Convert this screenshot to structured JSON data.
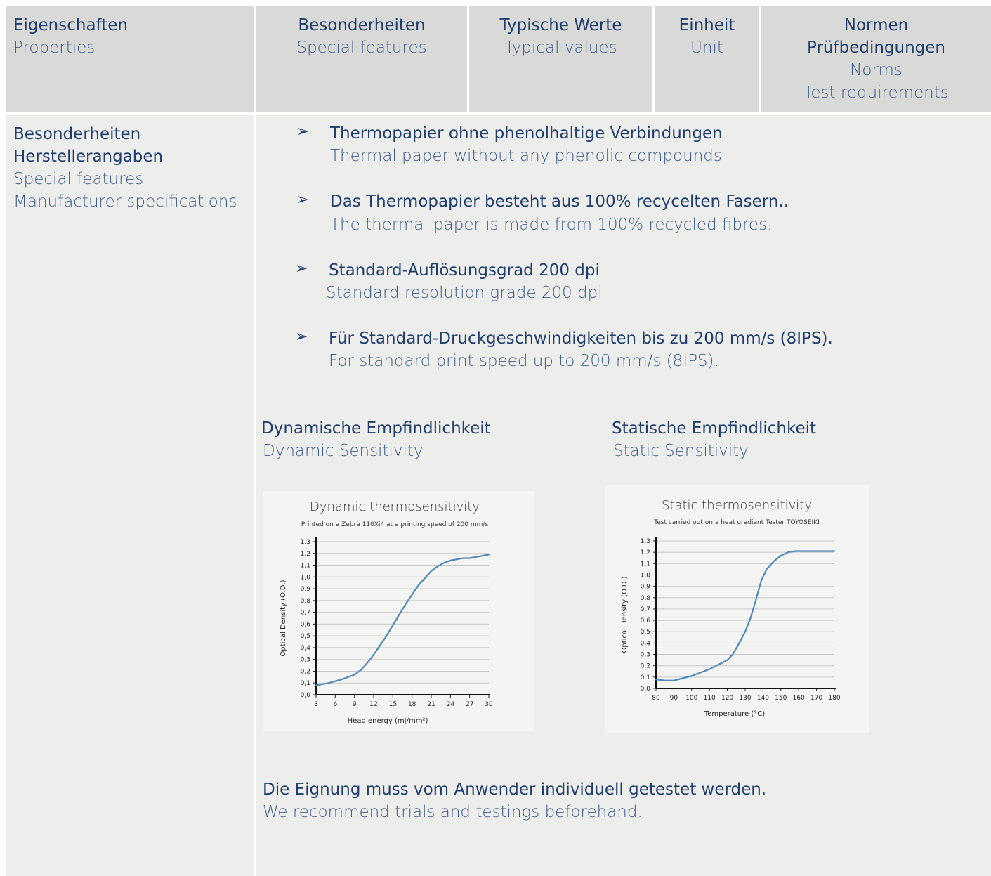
{
  "header": {
    "col1": {
      "de": "Eigenschaften",
      "en": "Properties"
    },
    "col2": {
      "de": "Besonderheiten",
      "en": "Special features"
    },
    "col3": {
      "de": "Typische Werte",
      "en": "Typical values"
    },
    "col4": {
      "de": "Einheit",
      "en": "Unit"
    },
    "col5": {
      "de1": "Normen",
      "de2": "Prüfbedingungen",
      "en1": "Norms",
      "en2": "Test requirements"
    }
  },
  "row": {
    "label": {
      "de1": "Besonderheiten",
      "de2": "Herstellerangaben",
      "en1": "Special features",
      "en2": "Manufacturer specifications"
    },
    "features": [
      {
        "de": "Thermopapier ohne phenolhaltige Verbindungen",
        "en": "Thermal paper without any phenolic compounds"
      },
      {
        "de": "Das Thermopapier besteht aus 100% recycelten Fasern..",
        "en": "The thermal paper is made from 100% recycled fibres."
      },
      {
        "de": "Standard-Auflösungsgrad 200 dpi",
        "en": "Standard resolution grade 200 dpi"
      },
      {
        "de": "Für Standard-Druckgeschwindigkeiten bis zu 200 mm/s (8IPS).",
        "en": "For standard print speed up to 200 mm/s (8IPS)."
      }
    ],
    "bullet_icon": "arrowhead-bullet-icon",
    "dynamic_heading": {
      "de": "Dynamische Empfindlichkeit",
      "en": "Dynamic Sensitivity"
    },
    "static_heading": {
      "de": "Statische Empfindlichkeit",
      "en": "Static Sensitivity"
    },
    "note": {
      "de": "Die Eignung muss vom Anwender individuell getestet werden.",
      "en": "We recommend trials and testings beforehand."
    }
  },
  "colors": {
    "header_bg": "#d9d9d8",
    "body_bg": "#ededeb",
    "text": "#1f3e6e",
    "curve": "#4f88bd"
  },
  "chart_data": [
    {
      "type": "line",
      "title": "Dynamic thermosensitivity",
      "subtitle": "Printed on a Zebra 110Xi4 at a printing speed of 200 mm/s",
      "xlabel": "Head energy (mJ/mm²)",
      "ylabel": "Optical Density (O.D.)",
      "x_ticks": [
        "3",
        "6",
        "9",
        "12",
        "15",
        "18",
        "21",
        "24",
        "27",
        "30"
      ],
      "y_ticks": [
        "0,0",
        "0,1",
        "0,2",
        "0,3",
        "0,4",
        "0,5",
        "0,6",
        "0,7",
        "0,8",
        "0,9",
        "1,0",
        "1,1",
        "1,2",
        "1,3"
      ],
      "xlim": [
        3,
        30
      ],
      "ylim": [
        0,
        1.3
      ],
      "grid": true,
      "series": [
        {
          "x": [
            3,
            5,
            7,
            9,
            10,
            11,
            12,
            13,
            14,
            15,
            16,
            17,
            18,
            19,
            20,
            21,
            22,
            23,
            24,
            25,
            26,
            27,
            28,
            29,
            30
          ],
          "y": [
            0.08,
            0.1,
            0.13,
            0.17,
            0.21,
            0.27,
            0.34,
            0.42,
            0.5,
            0.59,
            0.68,
            0.77,
            0.85,
            0.93,
            0.99,
            1.05,
            1.09,
            1.12,
            1.14,
            1.15,
            1.16,
            1.16,
            1.17,
            1.18,
            1.19
          ]
        }
      ]
    },
    {
      "type": "line",
      "title": "Static thermosensitivity",
      "subtitle": "Test carried out on a heat gradient Tester TOYOSEIKI",
      "xlabel": "Temperature (°C)",
      "ylabel": "Optical Density (O.D.)",
      "x_ticks": [
        "80",
        "90",
        "100",
        "110",
        "120",
        "130",
        "140",
        "150",
        "160",
        "170",
        "180"
      ],
      "y_ticks": [
        "0,0",
        "0,1",
        "0,2",
        "0,3",
        "0,4",
        "0,5",
        "0,6",
        "0,7",
        "0,8",
        "0,9",
        "1,0",
        "1,1",
        "1,2",
        "1,3"
      ],
      "xlim": [
        80,
        180
      ],
      "ylim": [
        0,
        1.3
      ],
      "grid": true,
      "series": [
        {
          "x": [
            80,
            85,
            90,
            95,
            100,
            105,
            110,
            115,
            120,
            123,
            126,
            130,
            133,
            136,
            139,
            142,
            146,
            150,
            154,
            158,
            160,
            165,
            170,
            175,
            180
          ],
          "y": [
            0.08,
            0.07,
            0.07,
            0.09,
            0.11,
            0.14,
            0.17,
            0.21,
            0.25,
            0.3,
            0.38,
            0.5,
            0.62,
            0.78,
            0.95,
            1.05,
            1.12,
            1.17,
            1.2,
            1.21,
            1.21,
            1.21,
            1.21,
            1.21,
            1.21
          ]
        }
      ]
    }
  ]
}
